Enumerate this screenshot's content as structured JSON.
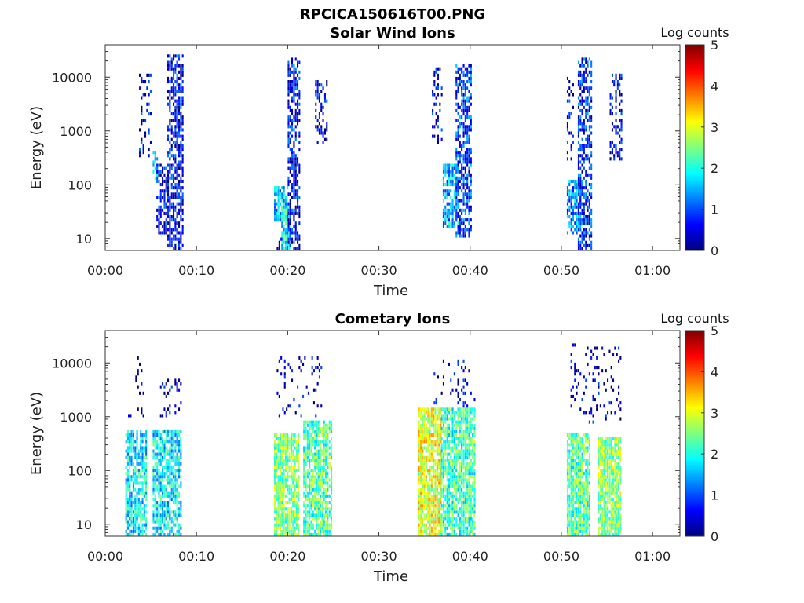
{
  "figure": {
    "title": "RPCICA150616T00.PNG"
  },
  "colormap": {
    "name": "jet",
    "stops": [
      "#00007f",
      "#0000ff",
      "#007fff",
      "#00ffff",
      "#7fff7f",
      "#ffff00",
      "#ff7f00",
      "#ff0000",
      "#7f0000"
    ]
  },
  "chart_data": [
    {
      "type": "heatmap",
      "title": "Solar Wind Ions",
      "xlabel": "Time",
      "ylabel": "Energy (eV)",
      "x_ticks": [
        "00:00",
        "00:10",
        "00:20",
        "00:30",
        "00:40",
        "00:50",
        "01:00"
      ],
      "x_tick_minutes": [
        0,
        10,
        20,
        30,
        40,
        50,
        60
      ],
      "xlim_minutes": [
        0,
        63
      ],
      "y_scale": "log",
      "ylim": [
        6,
        40000
      ],
      "y_ticks": [
        "10",
        "100",
        "1000",
        "10000"
      ],
      "y_tick_values": [
        10,
        100,
        1000,
        10000
      ],
      "colorbar": {
        "label": "Log counts",
        "range": [
          0,
          5
        ],
        "ticks": [
          "0",
          "1",
          "2",
          "3",
          "4",
          "5"
        ]
      },
      "grid": false,
      "bursts": [
        {
          "t_start": 3.7,
          "t_end": 5.1,
          "e_min": 300,
          "e_max": 12000,
          "level": 0.5,
          "density": 0.25
        },
        {
          "t_start": 5.2,
          "t_end": 5.8,
          "e_min": 100,
          "e_max": 400,
          "level": 1.8,
          "density": 0.6
        },
        {
          "t_start": 5.6,
          "t_end": 6.8,
          "e_min": 12,
          "e_max": 250,
          "level": 0.6,
          "density": 0.55
        },
        {
          "t_start": 6.8,
          "t_end": 8.6,
          "e_min": 6,
          "e_max": 28000,
          "level": 0.6,
          "density": 0.6
        },
        {
          "t_start": 18.5,
          "t_end": 20.0,
          "e_min": 20,
          "e_max": 100,
          "level": 1.6,
          "density": 0.8
        },
        {
          "t_start": 19.3,
          "t_end": 20.3,
          "e_min": 6,
          "e_max": 40,
          "level": 1.9,
          "density": 0.85
        },
        {
          "t_start": 18.6,
          "t_end": 19.3,
          "e_min": 6,
          "e_max": 10,
          "level": 0.3,
          "density": 0.5
        },
        {
          "t_start": 20.0,
          "t_end": 21.3,
          "e_min": 6,
          "e_max": 22000,
          "level": 0.6,
          "density": 0.6
        },
        {
          "t_start": 23.0,
          "t_end": 24.4,
          "e_min": 600,
          "e_max": 9000,
          "level": 0.5,
          "density": 0.45
        },
        {
          "t_start": 35.8,
          "t_end": 37.0,
          "e_min": 600,
          "e_max": 15000,
          "level": 0.5,
          "density": 0.3
        },
        {
          "t_start": 37.0,
          "t_end": 38.7,
          "e_min": 15,
          "e_max": 250,
          "level": 1.5,
          "density": 0.7
        },
        {
          "t_start": 38.4,
          "t_end": 40.2,
          "e_min": 10,
          "e_max": 18000,
          "level": 0.9,
          "density": 0.6
        },
        {
          "t_start": 50.6,
          "t_end": 51.4,
          "e_min": 300,
          "e_max": 12000,
          "level": 0.5,
          "density": 0.3
        },
        {
          "t_start": 50.6,
          "t_end": 52.2,
          "e_min": 12,
          "e_max": 120,
          "level": 1.3,
          "density": 0.7
        },
        {
          "t_start": 51.8,
          "t_end": 53.3,
          "e_min": 6,
          "e_max": 26000,
          "level": 0.8,
          "density": 0.6
        },
        {
          "t_start": 55.3,
          "t_end": 56.6,
          "e_min": 300,
          "e_max": 11000,
          "level": 0.5,
          "density": 0.45
        }
      ]
    },
    {
      "type": "heatmap",
      "title": "Cometary Ions",
      "xlabel": "Time",
      "ylabel": "Energy (eV)",
      "x_ticks": [
        "00:00",
        "00:10",
        "00:20",
        "00:30",
        "00:40",
        "00:50",
        "01:00"
      ],
      "x_tick_minutes": [
        0,
        10,
        20,
        30,
        40,
        50,
        60
      ],
      "xlim_minutes": [
        0,
        63
      ],
      "y_scale": "log",
      "ylim": [
        6,
        40000
      ],
      "y_ticks": [
        "10",
        "100",
        "1000",
        "10000"
      ],
      "y_tick_values": [
        10,
        100,
        1000,
        10000
      ],
      "colorbar": {
        "label": "Log counts",
        "range": [
          0,
          5
        ],
        "ticks": [
          "0",
          "1",
          "2",
          "3",
          "4",
          "5"
        ]
      },
      "grid": false,
      "bursts": [
        {
          "t_start": 2.2,
          "t_end": 4.5,
          "e_min": 6,
          "e_max": 600,
          "level": 1.8,
          "density": 0.75
        },
        {
          "t_start": 2.5,
          "t_end": 4.2,
          "e_min": 1000,
          "e_max": 15000,
          "level": 0.3,
          "density": 0.12
        },
        {
          "t_start": 5.2,
          "t_end": 8.3,
          "e_min": 6,
          "e_max": 600,
          "level": 1.8,
          "density": 0.75
        },
        {
          "t_start": 6.0,
          "t_end": 8.4,
          "e_min": 1000,
          "e_max": 5000,
          "level": 0.4,
          "density": 0.2
        },
        {
          "t_start": 18.5,
          "t_end": 21.3,
          "e_min": 6,
          "e_max": 500,
          "level": 2.5,
          "density": 0.85
        },
        {
          "t_start": 21.7,
          "t_end": 24.8,
          "e_min": 6,
          "e_max": 800,
          "level": 2.3,
          "density": 0.8
        },
        {
          "t_start": 18.8,
          "t_end": 23.8,
          "e_min": 1000,
          "e_max": 14000,
          "level": 0.4,
          "density": 0.1
        },
        {
          "t_start": 34.3,
          "t_end": 36.8,
          "e_min": 6,
          "e_max": 1500,
          "level": 3.0,
          "density": 0.9
        },
        {
          "t_start": 36.8,
          "t_end": 40.5,
          "e_min": 6,
          "e_max": 1500,
          "level": 2.2,
          "density": 0.8
        },
        {
          "t_start": 36.0,
          "t_end": 40.6,
          "e_min": 1500,
          "e_max": 12000,
          "level": 0.4,
          "density": 0.15
        },
        {
          "t_start": 50.6,
          "t_end": 53.2,
          "e_min": 6,
          "e_max": 500,
          "level": 2.3,
          "density": 0.85
        },
        {
          "t_start": 54.0,
          "t_end": 56.6,
          "e_min": 6,
          "e_max": 400,
          "level": 2.6,
          "density": 0.85
        },
        {
          "t_start": 51.0,
          "t_end": 56.6,
          "e_min": 700,
          "e_max": 22000,
          "level": 0.4,
          "density": 0.12
        }
      ]
    }
  ]
}
